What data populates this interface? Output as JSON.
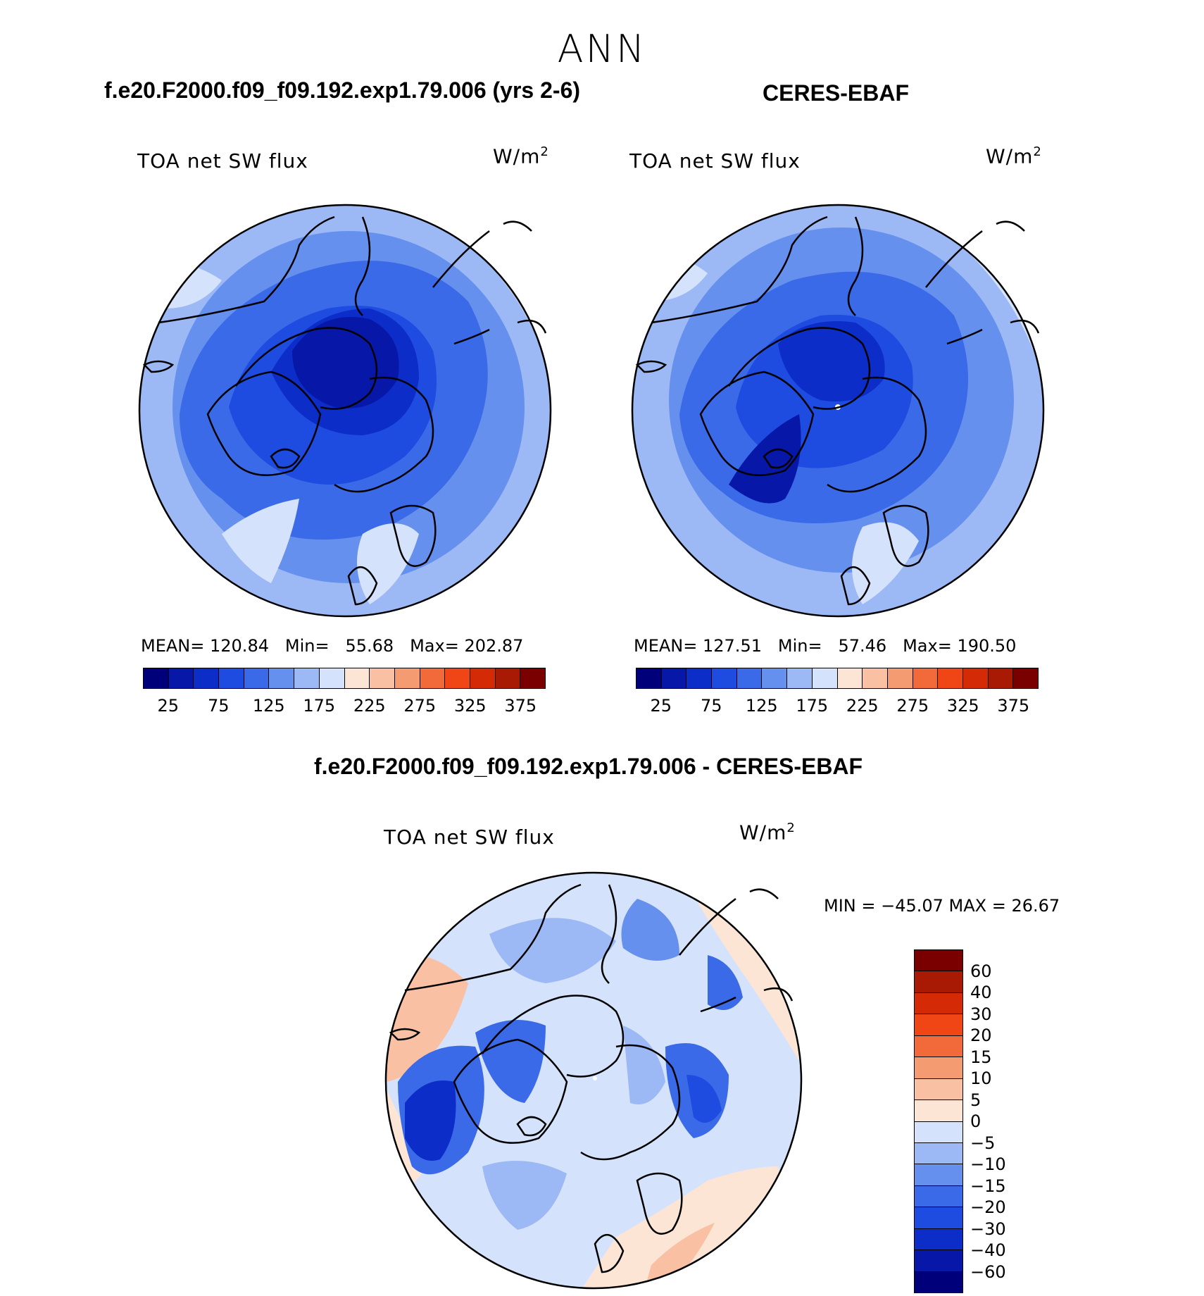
{
  "main_title": "ANN",
  "panels": [
    {
      "id": "model",
      "case_title": "f.e20.F2000.f09_f09.192.exp1.79.006 (yrs 2-6)",
      "variable_label": "TOA net SW flux",
      "units_label": "W/m",
      "units_exp": "2",
      "stats": {
        "mean_label": "MEAN=",
        "mean": "120.84",
        "min_label": "Min=",
        "min": "55.68",
        "max_label": "Max=",
        "max": "202.87"
      }
    },
    {
      "id": "obs",
      "case_title": "CERES-EBAF",
      "variable_label": "TOA net SW flux",
      "units_label": "W/m",
      "units_exp": "2",
      "stats": {
        "mean_label": "MEAN=",
        "mean": "127.51",
        "min_label": "Min=",
        "min": "57.46",
        "max_label": "Max=",
        "max": "190.50"
      }
    }
  ],
  "diff_panel": {
    "case_title": "f.e20.F2000.f09_f09.192.exp1.79.006 - CERES-EBAF",
    "variable_label": "TOA net SW flux",
    "units_label": "W/m",
    "units_exp": "2",
    "minmax": "MIN = −45.07 MAX =   26.67"
  },
  "colorbar_main": {
    "colors": [
      "#00007a",
      "#0718a8",
      "#0d2dc8",
      "#1e4be0",
      "#3a6ae8",
      "#6590ee",
      "#9cb8f5",
      "#d4e3fb",
      "#fde5d6",
      "#f9c0a4",
      "#f59b72",
      "#f26a3a",
      "#f04515",
      "#d42b06",
      "#a81a04",
      "#7a0000"
    ],
    "ticks": [
      "25",
      "75",
      "125",
      "175",
      "225",
      "275",
      "325",
      "375"
    ]
  },
  "colorbar_diff": {
    "colors": [
      "#7a0000",
      "#a81a04",
      "#d42b06",
      "#f04515",
      "#f26a3a",
      "#f59b72",
      "#f9c0a4",
      "#fde5d6",
      "#d4e3fb",
      "#9cb8f5",
      "#6590ee",
      "#3a6ae8",
      "#1e4be0",
      "#0d2dc8",
      "#0718a8",
      "#00007a"
    ],
    "ticks": [
      "60",
      "40",
      "30",
      "20",
      "15",
      "10",
      "5",
      "0",
      "−5",
      "−10",
      "−15",
      "−20",
      "−30",
      "−40",
      "−60"
    ]
  }
}
